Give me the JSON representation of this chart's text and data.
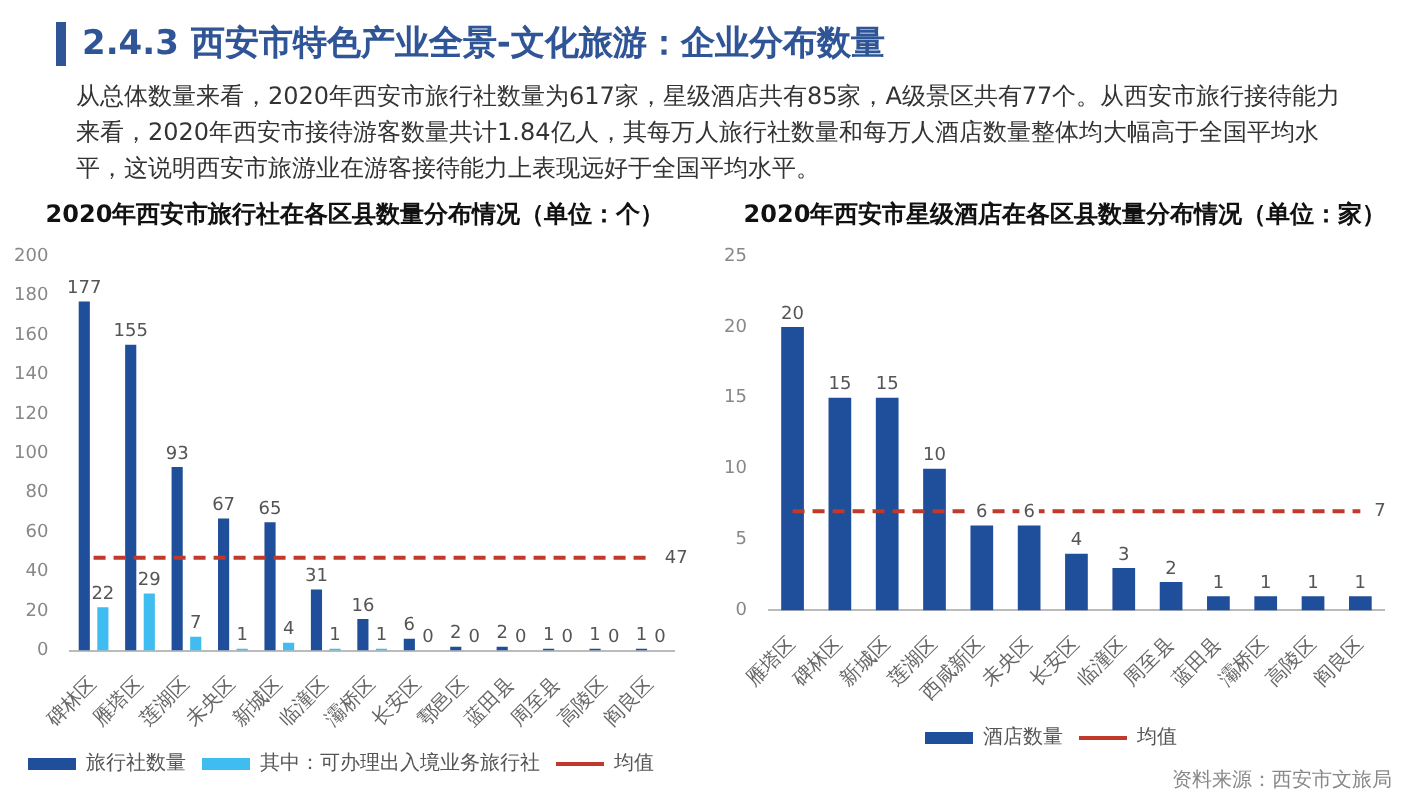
{
  "chart_data": [
    {
      "type": "other",
      "title": "2.4.3 西安市特色产业全景-文化旅游：企业分布数量",
      "annotations": [
        "从总体数量来看，2020年西安市旅行社数量为617家，星级酒店共有85家，A级景区共有77个。从西安市旅行接待能力来看，2020年西安市接待游客数量共计1.84亿人，其每万人旅行社数量和每万人酒店数量整体均大幅高于全国平均水平，这说明西安市旅游业在游客接待能力上表现远好于全国平均水平。"
      ]
    },
    {
      "type": "bar",
      "title": "2020年西安市旅行社在各区县数量分布情况（单位：个）",
      "categories": [
        "碑林区",
        "雁塔区",
        "莲湖区",
        "未央区",
        "新城区",
        "临潼区",
        "灞桥区",
        "长安区",
        "鄠邑区",
        "蓝田县",
        "周至县",
        "高陵区",
        "阎良区"
      ],
      "series": [
        {
          "name": "旅行社数量",
          "color": "#1f4e9a",
          "values": [
            177,
            155,
            93,
            67,
            65,
            31,
            16,
            6,
            2,
            2,
            1,
            1,
            1
          ],
          "value_labels": [
            "177",
            "155",
            "93",
            "67",
            "65",
            "31",
            "16",
            "6",
            "2",
            "2",
            "1",
            "1",
            "1"
          ]
        },
        {
          "name": "其中：可办理出入境业务旅行社",
          "color": "#3fbdf0",
          "values": [
            22,
            29,
            7,
            1,
            4,
            1,
            1,
            0,
            0,
            0,
            0,
            0,
            0
          ],
          "value_labels": [
            "22",
            "29",
            "7",
            "1",
            "4",
            "1",
            "1",
            "0",
            "0",
            "0",
            "0",
            "0",
            "0"
          ]
        },
        {
          "name": "均值",
          "type": "line",
          "color": "#c0392b",
          "line_style": "dashed",
          "marker": "none",
          "values": [
            47,
            47,
            47,
            47,
            47,
            47,
            47,
            47,
            47,
            47,
            47,
            47,
            47
          ],
          "value_labels": [
            null,
            null,
            null,
            null,
            null,
            null,
            null,
            null,
            null,
            null,
            null,
            null,
            "47"
          ]
        }
      ],
      "ylim": [
        0,
        200
      ],
      "yticks": [
        0,
        20,
        40,
        60,
        80,
        100,
        120,
        140,
        160,
        180,
        200
      ],
      "grid": false,
      "legend": "bottom"
    },
    {
      "type": "bar",
      "title": "2020年西安市星级酒店在各区县数量分布情况（单位：家）",
      "categories": [
        "雁塔区",
        "碑林区",
        "新城区",
        "莲湖区",
        "西咸新区",
        "未央区",
        "长安区",
        "临潼区",
        "周至县",
        "蓝田县",
        "灞桥区",
        "高陵区",
        "阎良区"
      ],
      "series": [
        {
          "name": "酒店数量",
          "color": "#1f4e9a",
          "values": [
            20,
            15,
            15,
            10,
            6,
            6,
            4,
            3,
            2,
            1,
            1,
            1,
            1
          ],
          "value_labels": [
            "20",
            "15",
            "15",
            "10",
            "6",
            "6",
            "4",
            "3",
            "2",
            "1",
            "1",
            "1",
            "1"
          ]
        },
        {
          "name": "均值",
          "type": "line",
          "color": "#c0392b",
          "line_style": "dashed",
          "marker": "none",
          "values": [
            7,
            7,
            7,
            7,
            7,
            7,
            7,
            7,
            7,
            7,
            7,
            7,
            7
          ],
          "value_labels": [
            null,
            null,
            null,
            null,
            null,
            null,
            null,
            null,
            null,
            null,
            null,
            null,
            "7"
          ]
        }
      ],
      "ylim": [
        0,
        25
      ],
      "yticks": [
        0,
        5,
        10,
        15,
        20,
        25
      ],
      "grid": false,
      "legend": "bottom",
      "annotations": [
        "资料来源：西安市文旅局"
      ]
    }
  ]
}
